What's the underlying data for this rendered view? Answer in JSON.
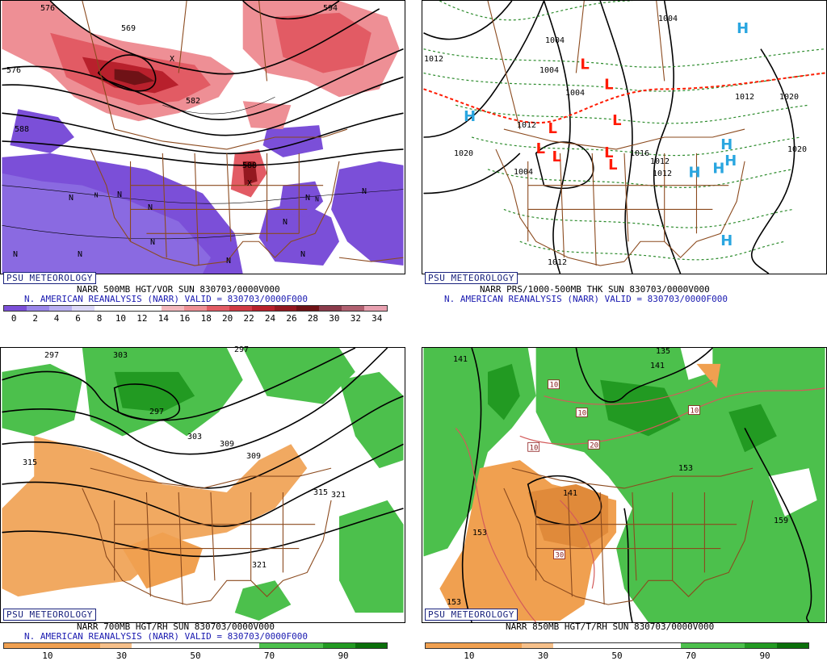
{
  "brand": "PSU METEOROLOGY",
  "colors": {
    "vor_ramp": [
      "#7b4fd8",
      "#9a86ea",
      "#b9b0f2",
      "#dcd8f8",
      "#ffffff",
      "#ffffff",
      "#ffffff",
      "#f3b8bd",
      "#ee8f95",
      "#e25b64",
      "#d03a44",
      "#b8202c",
      "#941820",
      "#6f1216",
      "#8a3a4a",
      "#b06070",
      "#e8a0b0"
    ],
    "rh_dry": "#f0a050",
    "rh_moist": [
      "#4cc04c",
      "#229a22",
      "#0a6f0a"
    ],
    "map_lines": "#8b4a1e",
    "high": "#2aa6e0",
    "low": "#ff1a00",
    "thickness": "#2a8a2a"
  },
  "panels": [
    {
      "id": "vor500",
      "title_line": "NARR 500MB HGT/VOR SUN 830703/0000V000",
      "subtitle_line": "N. AMERICAN REANALYSIS (NARR) VALID = 830703/0000F000",
      "colorbar_ticks": [
        "0",
        "2",
        "4",
        "6",
        "8",
        "10",
        "12",
        "14",
        "16",
        "18",
        "20",
        "22",
        "24",
        "26",
        "28",
        "30",
        "32",
        "34"
      ],
      "contour_labels": [
        "576",
        "588",
        "569",
        "576",
        "582",
        "588",
        "594"
      ],
      "marker_letters": [
        "N",
        "N",
        "N",
        "N",
        "N",
        "N",
        "N",
        "N",
        "N",
        "N",
        "N",
        "X",
        "X"
      ]
    },
    {
      "id": "prs1000_500",
      "title_line": "NARR PRS/1000-500MB THK SUN 830703/0000V000",
      "subtitle_line": "N. AMERICAN REANALYSIS (NARR) VALID = 830703/0000F000",
      "contour_labels": [
        "1004",
        "1004",
        "1004",
        "1012",
        "1020",
        "1012",
        "1016",
        "1004",
        "1012",
        "1020",
        "1012",
        "1012",
        "1004",
        "1012",
        "1020"
      ],
      "highs": [
        "H",
        "H",
        "H",
        "H",
        "H",
        "H",
        "H",
        "H"
      ],
      "lows": [
        "L",
        "L",
        "L",
        "L",
        "L",
        "L",
        "L",
        "L"
      ]
    },
    {
      "id": "rh700",
      "title_line": "NARR 700MB HGT/RH SUN 830703/0000V000",
      "subtitle_line": "N. AMERICAN REANALYSIS (NARR) VALID = 830703/0000F000",
      "colorbar_ticks": [
        "10",
        "30",
        "50",
        "70",
        "90"
      ],
      "contour_labels": [
        "297",
        "303",
        "297",
        "297",
        "309",
        "315",
        "303",
        "309",
        "315",
        "321",
        "321"
      ]
    },
    {
      "id": "rh850",
      "title_line": "NARR 850MB HGT/T/RH SUN 830703/0000V000",
      "colorbar_ticks": [
        "10",
        "30",
        "50",
        "70",
        "90"
      ],
      "contour_labels": [
        "141",
        "135",
        "141",
        "153",
        "141",
        "153",
        "153",
        "159"
      ],
      "temp_labels": [
        "10",
        "10",
        "10",
        "10",
        "20",
        "30"
      ]
    }
  ]
}
